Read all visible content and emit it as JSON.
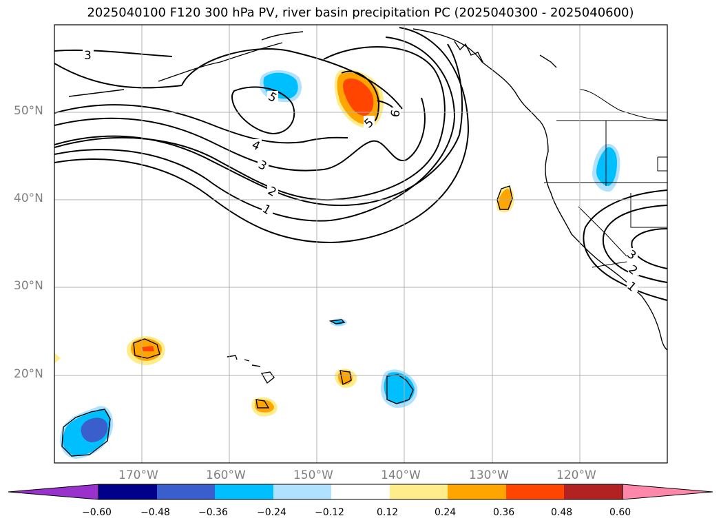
{
  "title": "2025040100 F120 300 hPa PV, river basin precipitation PC (2025040300 - 2025040600)",
  "map": {
    "lon_range": [
      -180,
      -110
    ],
    "lat_range": [
      10,
      60
    ],
    "lat_labels": [
      "50°N",
      "40°N",
      "30°N",
      "20°N"
    ],
    "lon_labels": [
      "170°W",
      "160°W",
      "150°W",
      "140°W",
      "130°W",
      "120°W"
    ]
  },
  "pv_contour_labels": [
    "3",
    "5",
    "6",
    "5",
    "4",
    "3",
    "2",
    "1",
    "3",
    "2",
    "1"
  ],
  "colorbar": {
    "ticks": [
      "−0.60",
      "−0.48",
      "−0.36",
      "−0.24",
      "−0.12",
      "0.12",
      "0.24",
      "0.36",
      "0.48",
      "0.60"
    ],
    "colors": [
      "#9932CC",
      "#00008B",
      "#3A5FCD",
      "#00BFFF",
      "#B0E2FF",
      "#FFFFFF",
      "#FFEC8B",
      "#FFA500",
      "#FF4500",
      "#B22222",
      "#FF88AA"
    ]
  }
}
